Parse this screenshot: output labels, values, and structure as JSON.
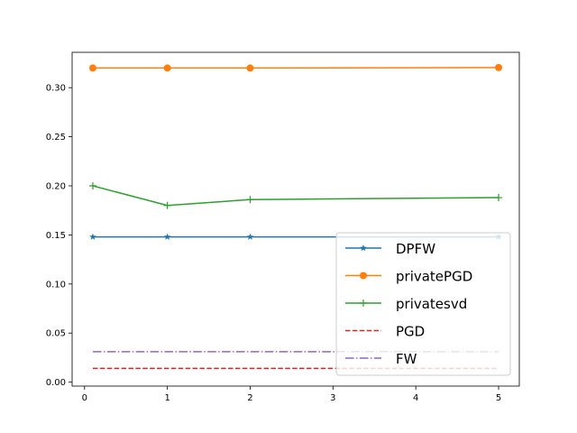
{
  "chart_data": {
    "type": "line",
    "title": "",
    "xlabel": "",
    "ylabel": "",
    "xlim": [
      -0.15,
      5.25
    ],
    "ylim": [
      -0.004,
      0.336
    ],
    "xticks": [
      0,
      1,
      2,
      3,
      4,
      5
    ],
    "xtick_labels": [
      "0",
      "1",
      "2",
      "3",
      "4",
      "5"
    ],
    "yticks": [
      0.0,
      0.05,
      0.1,
      0.15,
      0.2,
      0.25,
      0.3
    ],
    "ytick_labels": [
      "0.00",
      "0.05",
      "0.10",
      "0.15",
      "0.20",
      "0.25",
      "0.30"
    ],
    "grid": false,
    "legend": {
      "position": "lower-right"
    },
    "series": [
      {
        "name": "DPFW",
        "x": [
          0.1,
          1,
          2,
          5
        ],
        "y": [
          0.148,
          0.148,
          0.148,
          0.148
        ],
        "color": "#1f77b4",
        "linestyle": "solid",
        "marker": "star"
      },
      {
        "name": "privatePGD",
        "x": [
          0.1,
          1,
          2,
          5
        ],
        "y": [
          0.32,
          0.32,
          0.32,
          0.3205
        ],
        "color": "#ff7f0e",
        "linestyle": "solid",
        "marker": "circle"
      },
      {
        "name": "privatesvd",
        "x": [
          0.1,
          1,
          2,
          5
        ],
        "y": [
          0.2,
          0.18,
          0.186,
          0.188
        ],
        "color": "#2ca02c",
        "linestyle": "solid",
        "marker": "plus"
      },
      {
        "name": "PGD",
        "x": [
          0.1,
          1,
          2,
          5
        ],
        "y": [
          0.014,
          0.014,
          0.014,
          0.014
        ],
        "color": "#d62728",
        "linestyle": "dashed",
        "marker": "none"
      },
      {
        "name": "FW",
        "x": [
          0.1,
          1,
          2,
          5
        ],
        "y": [
          0.031,
          0.031,
          0.031,
          0.031
        ],
        "color": "#9467bd",
        "linestyle": "dashdot",
        "marker": "none"
      }
    ]
  }
}
